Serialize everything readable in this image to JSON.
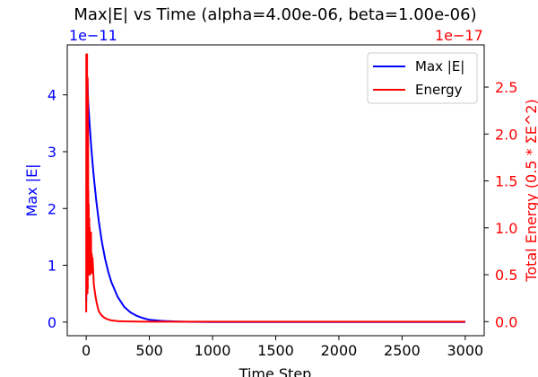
{
  "chart_data": {
    "type": "line",
    "title": "Max|E| vs Time (alpha=4.00e-06, beta=1.00e-06)",
    "xlabel": "Time Step",
    "ylabel_left": "Max |E|",
    "ylabel_right": "Total Energy (0.5 * ΣE^2)",
    "left_offset_label": "1e−11",
    "right_offset_label": "1e−17",
    "left_axis_color": "#0000ff",
    "right_axis_color": "#ff0000",
    "xlim": [
      -150,
      3150
    ],
    "ylim_left": [
      -0.24,
      4.88
    ],
    "ylim_right": [
      -0.15,
      2.95
    ],
    "x_ticks": [
      0,
      500,
      1000,
      1500,
      2000,
      2500,
      3000
    ],
    "y_ticks_left": [
      0,
      1,
      2,
      3,
      4
    ],
    "y_ticks_right": [
      0.0,
      0.5,
      1.0,
      1.5,
      2.0,
      2.5
    ],
    "x_tick_labels": [
      "0",
      "500",
      "1000",
      "1500",
      "2000",
      "2500",
      "3000"
    ],
    "y_tick_labels_left": [
      "0",
      "1",
      "2",
      "3",
      "4"
    ],
    "y_tick_labels_right": [
      "0.0",
      "0.5",
      "1.0",
      "1.5",
      "2.0",
      "2.5"
    ],
    "legend_position": "top-right",
    "series": [
      {
        "name": "Max |E|",
        "axis": "left",
        "color": "#0000ff",
        "x": [
          0,
          5,
          8,
          10,
          12,
          15,
          20,
          25,
          30,
          40,
          50,
          60,
          80,
          100,
          125,
          150,
          175,
          200,
          250,
          300,
          350,
          400,
          450,
          500,
          600,
          700,
          800,
          1000,
          1500,
          2000,
          2500,
          3000
        ],
        "values": [
          0.35,
          1.2,
          2.4,
          4.28,
          4.1,
          3.9,
          3.72,
          3.55,
          3.39,
          3.08,
          2.81,
          2.56,
          2.13,
          1.77,
          1.4,
          1.11,
          0.88,
          0.7,
          0.44,
          0.27,
          0.17,
          0.11,
          0.07,
          0.04,
          0.02,
          0.01,
          0.005,
          0.001,
          0.0,
          0.0,
          0.0,
          0.0
        ]
      },
      {
        "name": "Energy",
        "axis": "right",
        "color": "#ff0000",
        "x": [
          0,
          1,
          2,
          3,
          4,
          5,
          6,
          7,
          8,
          9,
          10,
          11,
          12,
          13,
          14,
          15,
          16,
          17,
          18,
          20,
          22,
          24,
          26,
          28,
          30,
          32,
          35,
          38,
          41,
          44,
          47,
          50,
          55,
          60,
          70,
          80,
          90,
          100,
          120,
          140,
          160,
          180,
          200,
          250,
          300,
          400,
          500,
          700,
          1000,
          1500,
          2000,
          2500,
          3000
        ],
        "values": [
          0.1,
          2.85,
          0.4,
          2.82,
          0.6,
          2.5,
          1.0,
          2.85,
          0.5,
          2.2,
          0.3,
          2.6,
          0.35,
          2.4,
          0.5,
          2.1,
          0.8,
          1.4,
          0.5,
          1.25,
          0.55,
          1.1,
          0.6,
          1.0,
          0.5,
          0.75,
          0.55,
          0.95,
          0.52,
          0.72,
          0.52,
          0.68,
          0.55,
          0.4,
          0.3,
          0.22,
          0.16,
          0.11,
          0.07,
          0.045,
          0.03,
          0.02,
          0.013,
          0.006,
          0.003,
          0.001,
          0.0,
          0.0,
          0.0,
          0.0,
          0.0,
          0.0,
          0.0
        ]
      }
    ]
  }
}
